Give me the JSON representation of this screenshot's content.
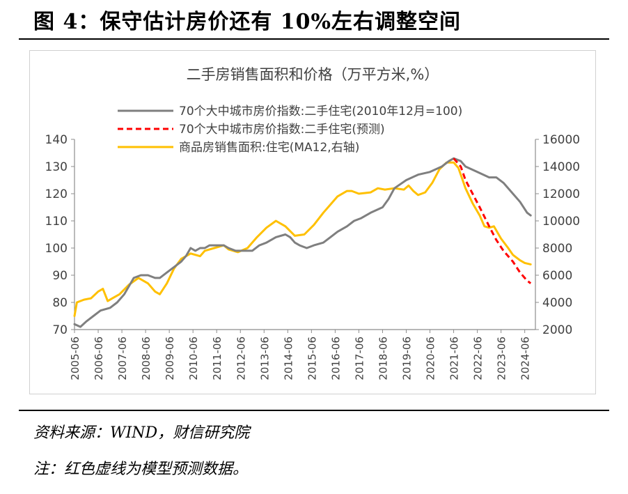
{
  "figure_title": "图 4：保守估计房价还有 10%左右调整空间",
  "source_note": "资料来源：WIND，财信研究院",
  "note": "注：红色虚线为模型预测数据。",
  "chart_data": {
    "type": "line",
    "title": "二手房销售面积和价格（万平方米,%）",
    "x_ticks": [
      "2005-06",
      "2006-06",
      "2007-06",
      "2008-06",
      "2009-06",
      "2010-06",
      "2011-06",
      "2012-06",
      "2013-06",
      "2014-06",
      "2015-06",
      "2016-06",
      "2017-06",
      "2018-06",
      "2019-06",
      "2020-06",
      "2021-06",
      "2022-06",
      "2023-06",
      "2024-06"
    ],
    "y_left": {
      "min": 70,
      "max": 140,
      "ticks": [
        70,
        80,
        90,
        100,
        110,
        120,
        130,
        140
      ]
    },
    "y_right": {
      "min": 2000,
      "max": 16000,
      "ticks": [
        2000,
        4000,
        6000,
        8000,
        10000,
        12000,
        14000,
        16000
      ]
    },
    "legend_position": "top",
    "colors": {
      "gray": "#7f7f7f",
      "red": "#ff0000",
      "yellow": "#ffc000"
    },
    "series": [
      {
        "name": "70个大中城市房价指数:二手住宅(2010年12月=100)",
        "axis": "left",
        "color": "#7f7f7f",
        "dash": "solid",
        "points": [
          [
            2005.5,
            72
          ],
          [
            2005.75,
            71
          ],
          [
            2006.0,
            73
          ],
          [
            2006.3,
            75
          ],
          [
            2006.6,
            77
          ],
          [
            2007.0,
            78
          ],
          [
            2007.3,
            80
          ],
          [
            2007.6,
            83
          ],
          [
            2007.8,
            86
          ],
          [
            2008.0,
            89
          ],
          [
            2008.3,
            90
          ],
          [
            2008.6,
            90
          ],
          [
            2008.9,
            89
          ],
          [
            2009.1,
            89
          ],
          [
            2009.4,
            91
          ],
          [
            2009.7,
            93
          ],
          [
            2010.0,
            95
          ],
          [
            2010.2,
            97
          ],
          [
            2010.4,
            100
          ],
          [
            2010.6,
            99
          ],
          [
            2010.8,
            100
          ],
          [
            2011.0,
            100
          ],
          [
            2011.2,
            101
          ],
          [
            2011.5,
            101
          ],
          [
            2011.8,
            101
          ],
          [
            2012.0,
            100
          ],
          [
            2012.3,
            99
          ],
          [
            2012.6,
            99
          ],
          [
            2013.0,
            99
          ],
          [
            2013.3,
            101
          ],
          [
            2013.6,
            102
          ],
          [
            2014.0,
            104
          ],
          [
            2014.4,
            105
          ],
          [
            2014.6,
            104
          ],
          [
            2014.8,
            102
          ],
          [
            2015.0,
            101
          ],
          [
            2015.3,
            100
          ],
          [
            2015.6,
            101
          ],
          [
            2016.0,
            102
          ],
          [
            2016.3,
            104
          ],
          [
            2016.6,
            106
          ],
          [
            2017.0,
            108
          ],
          [
            2017.3,
            110
          ],
          [
            2017.6,
            111
          ],
          [
            2018.0,
            113
          ],
          [
            2018.5,
            115
          ],
          [
            2018.75,
            118
          ],
          [
            2019.0,
            122
          ],
          [
            2019.5,
            125
          ],
          [
            2020.0,
            127
          ],
          [
            2020.5,
            128
          ],
          [
            2021.0,
            130
          ],
          [
            2021.3,
            132
          ],
          [
            2021.5,
            133
          ],
          [
            2021.8,
            132
          ],
          [
            2022.0,
            130
          ],
          [
            2022.5,
            128
          ],
          [
            2023.0,
            126
          ],
          [
            2023.3,
            126
          ],
          [
            2023.6,
            124
          ],
          [
            2024.0,
            120
          ],
          [
            2024.3,
            117
          ],
          [
            2024.6,
            113
          ],
          [
            2024.75,
            112
          ]
        ]
      },
      {
        "name": "70个大中城市房价指数:二手住宅(预测)",
        "axis": "left",
        "color": "#ff0000",
        "dash": "dashed",
        "points": [
          [
            2021.5,
            133
          ],
          [
            2021.8,
            130
          ],
          [
            2022.0,
            125
          ],
          [
            2022.3,
            120
          ],
          [
            2022.6,
            115
          ],
          [
            2023.0,
            108
          ],
          [
            2023.3,
            103
          ],
          [
            2023.6,
            99
          ],
          [
            2024.0,
            95
          ],
          [
            2024.3,
            91
          ],
          [
            2024.6,
            88
          ],
          [
            2024.75,
            87
          ]
        ]
      },
      {
        "name": "商品房销售面积:住宅(MA12,右轴)",
        "axis": "right",
        "color": "#ffc000",
        "dash": "solid",
        "points": [
          [
            2005.5,
            3000
          ],
          [
            2005.6,
            4000
          ],
          [
            2005.9,
            4200
          ],
          [
            2006.2,
            4300
          ],
          [
            2006.5,
            4800
          ],
          [
            2006.7,
            5000
          ],
          [
            2006.9,
            4100
          ],
          [
            2007.1,
            4300
          ],
          [
            2007.4,
            4600
          ],
          [
            2007.8,
            5300
          ],
          [
            2008.2,
            5800
          ],
          [
            2008.6,
            5400
          ],
          [
            2008.9,
            4800
          ],
          [
            2009.1,
            4600
          ],
          [
            2009.4,
            5400
          ],
          [
            2009.7,
            6500
          ],
          [
            2010.0,
            7200
          ],
          [
            2010.4,
            7600
          ],
          [
            2010.8,
            7400
          ],
          [
            2011.0,
            7800
          ],
          [
            2011.4,
            8000
          ],
          [
            2011.8,
            8200
          ],
          [
            2012.0,
            7900
          ],
          [
            2012.4,
            7700
          ],
          [
            2012.8,
            8000
          ],
          [
            2013.2,
            8800
          ],
          [
            2013.6,
            9500
          ],
          [
            2014.0,
            10000
          ],
          [
            2014.4,
            9600
          ],
          [
            2014.8,
            8900
          ],
          [
            2015.2,
            9000
          ],
          [
            2015.6,
            9700
          ],
          [
            2016.0,
            10600
          ],
          [
            2016.3,
            11200
          ],
          [
            2016.6,
            11800
          ],
          [
            2017.0,
            12200
          ],
          [
            2017.2,
            12200
          ],
          [
            2017.5,
            12000
          ],
          [
            2018.0,
            12100
          ],
          [
            2018.3,
            12400
          ],
          [
            2018.6,
            12300
          ],
          [
            2019.0,
            12400
          ],
          [
            2019.4,
            12300
          ],
          [
            2019.6,
            12600
          ],
          [
            2019.8,
            12200
          ],
          [
            2020.0,
            11900
          ],
          [
            2020.3,
            12100
          ],
          [
            2020.6,
            12800
          ],
          [
            2020.9,
            13800
          ],
          [
            2021.2,
            14300
          ],
          [
            2021.5,
            14300
          ],
          [
            2021.7,
            13900
          ],
          [
            2022.0,
            12400
          ],
          [
            2022.3,
            11300
          ],
          [
            2022.6,
            10400
          ],
          [
            2022.8,
            9600
          ],
          [
            2023.0,
            9500
          ],
          [
            2023.2,
            9600
          ],
          [
            2023.5,
            8700
          ],
          [
            2023.8,
            8000
          ],
          [
            2024.0,
            7500
          ],
          [
            2024.3,
            7100
          ],
          [
            2024.5,
            6900
          ],
          [
            2024.75,
            6800
          ]
        ]
      }
    ]
  }
}
